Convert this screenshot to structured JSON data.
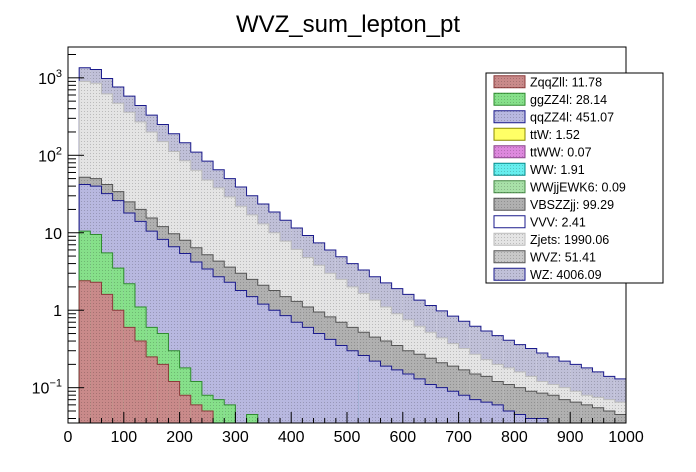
{
  "chart_data": {
    "type": "stacked-histogram",
    "title": "WVZ_sum_lepton_pt",
    "xlabel": "",
    "ylabel": "",
    "xlim": [
      0,
      1000
    ],
    "ylim": [
      0.035,
      2500
    ],
    "yscale": "log",
    "grid": false,
    "legend_position": "top-right",
    "x_ticks": [
      "0",
      "100",
      "200",
      "300",
      "400",
      "500",
      "600",
      "700",
      "800",
      "900",
      "1000"
    ],
    "y_ticks": [
      {
        "value": 0.1,
        "base": "10",
        "exp": "−1"
      },
      {
        "value": 1,
        "label": "1"
      },
      {
        "value": 10,
        "label": "10"
      },
      {
        "value": 100,
        "base": "10",
        "exp": "2"
      },
      {
        "value": 1000,
        "base": "10",
        "exp": "3"
      }
    ],
    "bin_width": 20,
    "stacked_cumulative_levels": [
      {
        "name": "ZqqZll",
        "legend": "ZqqZll: 11.78",
        "color": "#c98a8a",
        "edge": "#8b3a3a",
        "pattern": "dots",
        "values": [
          0,
          2.4,
          2.3,
          1.6,
          1.0,
          0.6,
          0.4,
          0.25,
          0.2,
          0.12,
          0.08,
          0.06,
          0.05,
          0,
          0,
          0,
          0,
          0,
          0,
          0,
          0,
          0,
          0,
          0,
          0,
          0,
          0,
          0,
          0,
          0,
          0,
          0,
          0,
          0,
          0,
          0,
          0,
          0,
          0,
          0,
          0,
          0,
          0,
          0,
          0,
          0,
          0,
          0,
          0,
          0
        ]
      },
      {
        "name": "ggZZ4l",
        "legend": "ggZZ4l: 28.14",
        "color": "#86e08a",
        "edge": "#2e8b2e",
        "pattern": "dots",
        "values": [
          0,
          10.5,
          9.5,
          5.5,
          3.5,
          2.2,
          1.1,
          0.6,
          0.5,
          0.3,
          0.18,
          0.12,
          0.08,
          0.07,
          0.06,
          0,
          0.045,
          0,
          0,
          0,
          0,
          0,
          0,
          0,
          0,
          0,
          0,
          0,
          0,
          0,
          0,
          0,
          0,
          0,
          0,
          0,
          0,
          0,
          0,
          0,
          0,
          0,
          0,
          0,
          0,
          0,
          0,
          0,
          0,
          0
        ]
      },
      {
        "name": "qqZZ4l",
        "legend": "qqZZ4l: 451.07",
        "color": "#b8b8e0",
        "edge": "#1a1a8c",
        "pattern": "dots",
        "values": [
          0,
          42,
          40,
          32,
          26,
          18,
          14,
          10.5,
          8.2,
          6.6,
          5.4,
          4.2,
          3.4,
          2.7,
          2.3,
          1.8,
          1.5,
          1.2,
          1.0,
          0.85,
          0.7,
          0.6,
          0.5,
          0.42,
          0.35,
          0.3,
          0.26,
          0.22,
          0.19,
          0.17,
          0.15,
          0.13,
          0.11,
          0.1,
          0.09,
          0.08,
          0.07,
          0.065,
          0.06,
          0.05,
          0.045,
          0.04,
          0.04,
          0.035,
          0.035,
          0.035,
          0.035,
          0.035,
          0.035,
          0.035
        ]
      },
      {
        "name": "ttW",
        "legend": "ttW: 1.52",
        "color": "#ffff66",
        "edge": "#888800",
        "pattern": "solid",
        "values": []
      },
      {
        "name": "ttWW",
        "legend": "ttWW: 0.07",
        "color": "#dd88dd",
        "edge": "#884488",
        "pattern": "dots",
        "values": []
      },
      {
        "name": "WW",
        "legend": "WW: 1.91",
        "color": "#66eeee",
        "edge": "#008888",
        "pattern": "dots",
        "values": [
          0,
          0,
          0,
          0,
          0,
          0,
          0,
          0,
          0,
          0,
          0,
          0,
          0,
          0,
          0,
          0,
          0,
          0,
          0,
          0,
          0,
          0,
          0,
          0,
          0,
          0.18,
          0,
          0,
          0,
          0,
          0,
          0,
          0,
          0,
          0,
          0,
          0,
          0,
          0,
          0,
          0,
          0,
          0,
          0,
          0,
          0,
          0,
          0,
          0,
          0
        ]
      },
      {
        "name": "WWjjEWK6",
        "legend": "WWjjEWK6: 0.09",
        "color": "#a8e0a8",
        "edge": "#448844",
        "pattern": "dots",
        "values": []
      },
      {
        "name": "VBSZZjj",
        "legend": "VBSZZjj: 99.29",
        "color": "#b0b0b0",
        "edge": "#555555",
        "pattern": "dots",
        "values": [
          0,
          52,
          50,
          42,
          34,
          25,
          20,
          15.5,
          12,
          9.7,
          8,
          6.4,
          5.2,
          4.3,
          3.6,
          3,
          2.5,
          2.1,
          1.8,
          1.5,
          1.3,
          1.1,
          0.95,
          0.82,
          0.7,
          0.6,
          0.52,
          0.45,
          0.4,
          0.35,
          0.3,
          0.27,
          0.24,
          0.21,
          0.19,
          0.17,
          0.15,
          0.14,
          0.12,
          0.11,
          0.1,
          0.09,
          0.085,
          0.08,
          0.07,
          0.065,
          0.06,
          0.055,
          0.05,
          0.045
        ]
      },
      {
        "name": "VVV",
        "legend": "VVV: 2.41",
        "color": "#ffffff",
        "edge": "#1a1a8c",
        "pattern": "solid",
        "values": []
      },
      {
        "name": "Zjets",
        "legend": "Zjets: 1990.06",
        "color": "#e4e4e4",
        "edge": "#bbbbbb",
        "pattern": "dots",
        "values": [
          0,
          900,
          850,
          620,
          470,
          360,
          270,
          200,
          150,
          112,
          85,
          64,
          48,
          38,
          29,
          22,
          17,
          13,
          10,
          7.8,
          6.1,
          4.8,
          3.8,
          3,
          2.5,
          2,
          1.65,
          1.35,
          1.1,
          0.9,
          0.75,
          0.62,
          0.52,
          0.44,
          0.37,
          0.32,
          0.27,
          0.23,
          0.2,
          0.18,
          0.16,
          0.14,
          0.12,
          0.11,
          0.1,
          0.09,
          0.08,
          0.075,
          0.07,
          0.065
        ]
      },
      {
        "name": "WVZ",
        "legend": "WVZ: 51.41",
        "color": "#c8c8c8",
        "edge": "#555555",
        "pattern": "dots",
        "values": []
      },
      {
        "name": "WZ",
        "legend": "WZ: 4006.09",
        "color": "#c0c0d8",
        "edge": "#1a1a8c",
        "pattern": "dots",
        "values": [
          0,
          1350,
          1280,
          980,
          760,
          580,
          440,
          330,
          250,
          190,
          145,
          110,
          84,
          65,
          50,
          39,
          30,
          23.5,
          18.5,
          14.5,
          11.5,
          9.2,
          7.4,
          6,
          4.9,
          4,
          3.3,
          2.7,
          2.25,
          1.9,
          1.6,
          1.35,
          1.15,
          0.98,
          0.84,
          0.72,
          0.62,
          0.54,
          0.47,
          0.41,
          0.36,
          0.32,
          0.28,
          0.25,
          0.22,
          0.2,
          0.18,
          0.16,
          0.14,
          0.13
        ]
      }
    ]
  }
}
